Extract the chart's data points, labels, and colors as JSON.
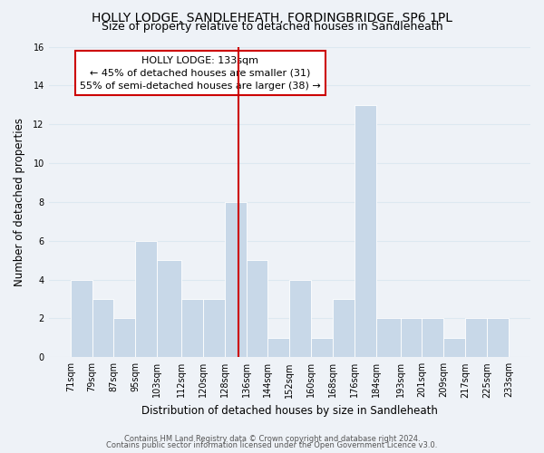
{
  "title": "HOLLY LODGE, SANDLEHEATH, FORDINGBRIDGE, SP6 1PL",
  "subtitle": "Size of property relative to detached houses in Sandleheath",
  "xlabel": "Distribution of detached houses by size in Sandleheath",
  "ylabel": "Number of detached properties",
  "bin_labels": [
    "71sqm",
    "79sqm",
    "87sqm",
    "95sqm",
    "103sqm",
    "112sqm",
    "120sqm",
    "128sqm",
    "136sqm",
    "144sqm",
    "152sqm",
    "160sqm",
    "168sqm",
    "176sqm",
    "184sqm",
    "193sqm",
    "201sqm",
    "209sqm",
    "217sqm",
    "225sqm",
    "233sqm"
  ],
  "bin_edges": [
    71,
    79,
    87,
    95,
    103,
    112,
    120,
    128,
    136,
    144,
    152,
    160,
    168,
    176,
    184,
    193,
    201,
    209,
    217,
    225,
    233
  ],
  "counts": [
    4,
    3,
    2,
    6,
    5,
    3,
    3,
    8,
    5,
    1,
    4,
    1,
    3,
    13,
    2,
    2,
    2,
    1,
    2,
    2
  ],
  "bar_color": "#c8d8e8",
  "bar_edge_color": "#ffffff",
  "vline_x": 133,
  "vline_color": "#cc0000",
  "annotation_line1": "HOLLY LODGE: 133sqm",
  "annotation_line2": "← 45% of detached houses are smaller (31)",
  "annotation_line3": "55% of semi-detached houses are larger (38) →",
  "annotation_box_edge_color": "#cc0000",
  "annotation_box_face_color": "#ffffff",
  "ylim": [
    0,
    16
  ],
  "yticks": [
    0,
    2,
    4,
    6,
    8,
    10,
    12,
    14,
    16
  ],
  "grid_color": "#dce8f0",
  "background_color": "#eef2f7",
  "footer_line1": "Contains HM Land Registry data © Crown copyright and database right 2024.",
  "footer_line2": "Contains public sector information licensed under the Open Government Licence v3.0.",
  "title_fontsize": 10,
  "subtitle_fontsize": 9,
  "xlabel_fontsize": 8.5,
  "ylabel_fontsize": 8.5,
  "tick_fontsize": 7,
  "annotation_fontsize": 8,
  "footer_fontsize": 6
}
